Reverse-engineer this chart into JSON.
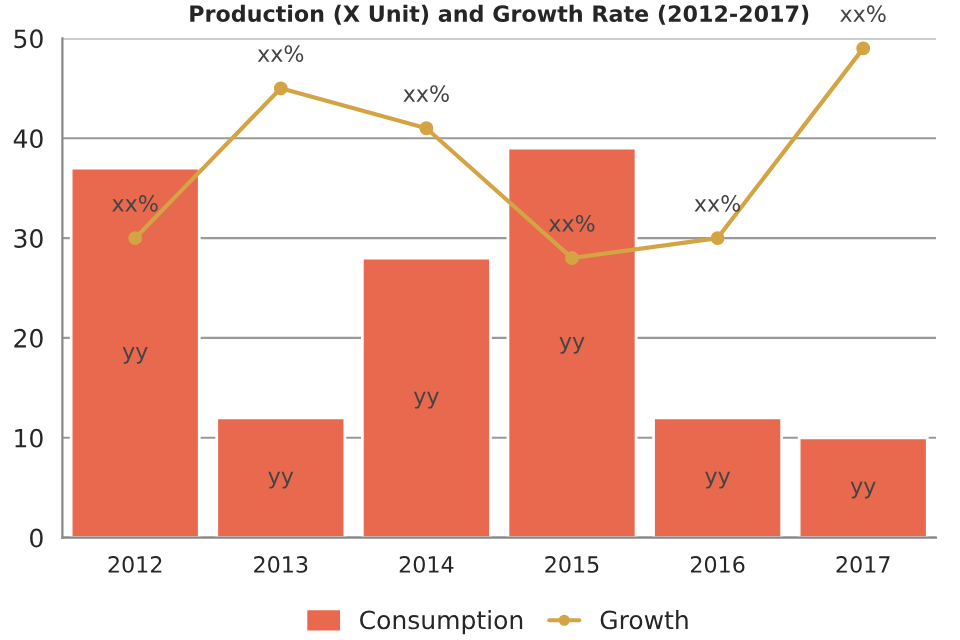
{
  "chart_data": {
    "type": "bar",
    "title": "Production (X Unit) and Growth Rate (2012-2017)",
    "categories": [
      "2012",
      "2013",
      "2014",
      "2015",
      "2016",
      "2017"
    ],
    "series": [
      {
        "name": "Consumption",
        "color": "#e8694e",
        "values": [
          37,
          12,
          28,
          39,
          12,
          10
        ],
        "value_labels": [
          "yy",
          "yy",
          "yy",
          "yy",
          "yy",
          "yy"
        ]
      },
      {
        "name": "Growth",
        "type": "line",
        "color": "#d4a444",
        "values": [
          30,
          45,
          41,
          28,
          30,
          49
        ],
        "value_labels": [
          "xx%",
          "xx%",
          "xx%",
          "xx%",
          "xx%",
          "xx%"
        ],
        "marker": "circle",
        "line_style": "solid"
      }
    ],
    "ylim": [
      0,
      50
    ],
    "yticks": [
      0,
      10,
      20,
      30,
      40,
      50
    ],
    "grid": "y",
    "legend": "bottom"
  }
}
